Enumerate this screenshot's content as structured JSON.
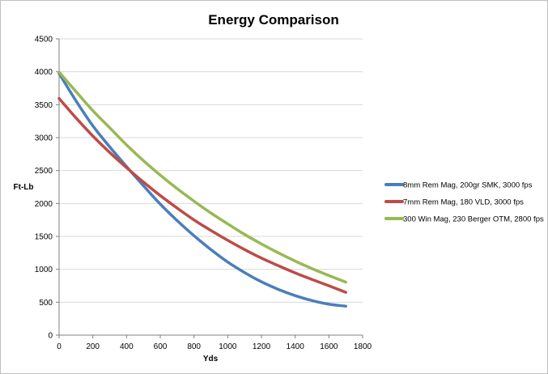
{
  "chart_data": {
    "type": "line",
    "title": "Energy Comparison",
    "xlabel": "Yds",
    "ylabel": "Ft-Lb",
    "xlim": [
      0,
      1800
    ],
    "ylim": [
      0,
      4500
    ],
    "xticks": [
      0,
      200,
      400,
      600,
      800,
      1000,
      1200,
      1400,
      1600,
      1800
    ],
    "yticks": [
      0,
      500,
      1000,
      1500,
      2000,
      2500,
      3000,
      3500,
      4000,
      4500
    ],
    "grid": "horizontal",
    "legend_position": "right",
    "x": [
      0,
      100,
      200,
      300,
      400,
      500,
      600,
      700,
      800,
      900,
      1000,
      1100,
      1200,
      1300,
      1400,
      1500,
      1600,
      1700
    ],
    "series": [
      {
        "name": "8mm Rem Mag, 200gr SMK, 3000 fps",
        "color": "#4a7ebb",
        "values": [
          3975,
          3560,
          3180,
          2860,
          2560,
          2270,
          1990,
          1740,
          1510,
          1300,
          1110,
          950,
          810,
          695,
          600,
          525,
          470,
          440
        ]
      },
      {
        "name": "7mm Rem Mag, 180 VLD, 3000 fps",
        "color": "#be4b48",
        "values": [
          3595,
          3300,
          3025,
          2775,
          2545,
          2325,
          2120,
          1930,
          1750,
          1590,
          1440,
          1300,
          1170,
          1055,
          945,
          845,
          750,
          650
        ]
      },
      {
        "name": "300 Win Mag, 230 Berger OTM, 2800 fps",
        "color": "#98b954",
        "values": [
          3995,
          3700,
          3410,
          3150,
          2890,
          2650,
          2430,
          2225,
          2035,
          1855,
          1690,
          1530,
          1385,
          1250,
          1125,
          1010,
          905,
          805
        ]
      }
    ]
  }
}
